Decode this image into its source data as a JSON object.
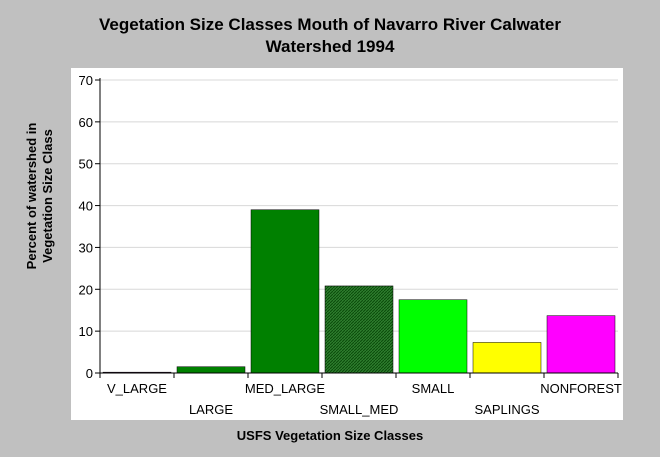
{
  "chart_data": {
    "type": "bar",
    "title_line1": "Vegetation Size Classes Mouth of Navarro River Calwater",
    "title_line2": "Watershed 1994",
    "ylabel_line1": "Percent of watershed in",
    "ylabel_line2": "Vegetation Size Class",
    "xlabel": "USFS Vegetation Size Classes",
    "categories": [
      "V_LARGE",
      "LARGE",
      "MED_LARGE",
      "SMALL_MED",
      "SMALL",
      "SAPLINGS",
      "NONFOREST"
    ],
    "values": [
      0.2,
      1.5,
      39,
      20.8,
      17.5,
      7.3,
      13.7
    ],
    "colors": [
      "#800080",
      "#008000",
      "#008000",
      "#008000",
      "#00ff00",
      "#ffff00",
      "#ff00ff"
    ],
    "ylim": [
      0,
      70
    ],
    "yticks": [
      0,
      10,
      20,
      30,
      40,
      50,
      60,
      70
    ],
    "grid": true,
    "legend": "none"
  }
}
